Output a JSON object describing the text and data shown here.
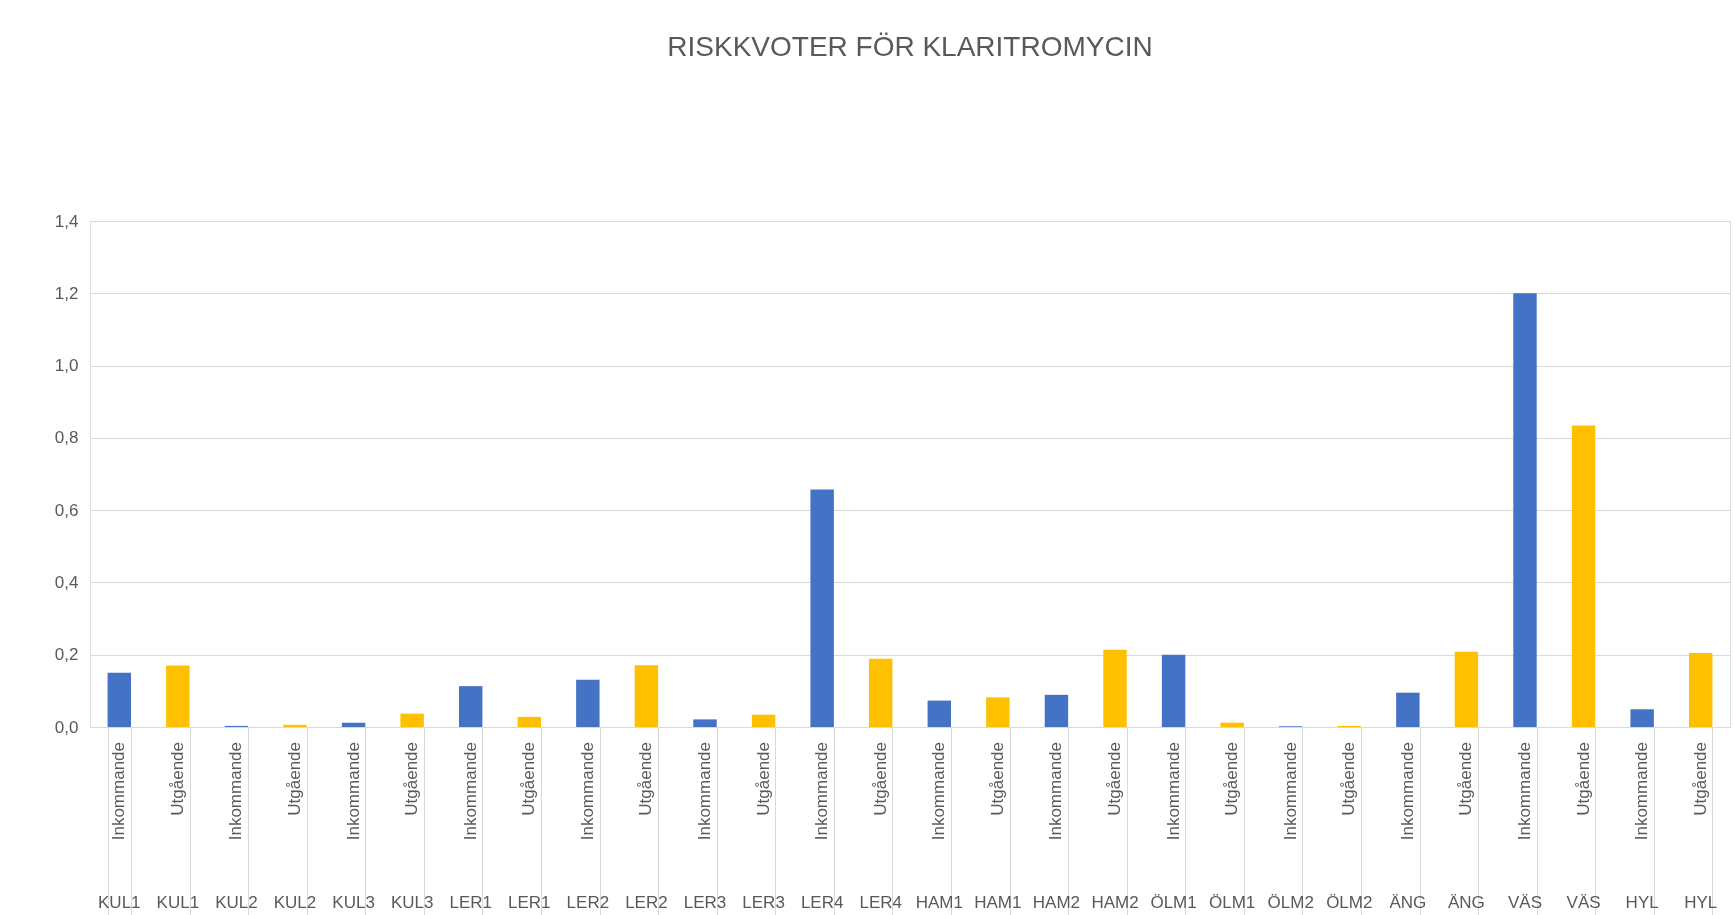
{
  "chart_data": {
    "type": "bar",
    "title": "RISKKVOTER FÖR KLARITROMYCIN",
    "categories": [
      "Inkommande KUL1",
      "Utgående KUL1",
      "Inkommande KUL2",
      "Utgående KUL2",
      "Inkommande KUL3",
      "Utgående KUL3",
      "Inkommande LER1",
      "Utgående LER1",
      "Inkommande LER2",
      "Utgående LER2",
      "Inkommande LER3",
      "Utgående LER3",
      "Inkommande LER4",
      "Utgående LER4",
      "Inkommande HAM1",
      "Utgående HAM1",
      "Inkommande HAM2",
      "Utgående HAM2",
      "Inkommande ÖLM1",
      "Utgående ÖLM1",
      "Inkommande ÖLM2",
      "Utgående ÖLM2",
      "Inkommande ÄNG",
      "Utgående ÄNG",
      "Inkommande VÄS",
      "Utgående VÄS",
      "Inkommande HYL",
      "Utgående HYL"
    ],
    "values": [
      0.15,
      0.17,
      0.003,
      0.006,
      0.012,
      0.037,
      0.113,
      0.028,
      0.131,
      0.171,
      0.021,
      0.034,
      0.657,
      0.189,
      0.073,
      0.082,
      0.089,
      0.214,
      0.2,
      0.012,
      0.002,
      0.003,
      0.095,
      0.208,
      1.2,
      0.834,
      0.049,
      0.205
    ],
    "colors": [
      "#4472c4",
      "#ffc000",
      "#4472c4",
      "#ffc000",
      "#4472c4",
      "#ffc000",
      "#4472c4",
      "#ffc000",
      "#4472c4",
      "#ffc000",
      "#4472c4",
      "#ffc000",
      "#4472c4",
      "#ffc000",
      "#4472c4",
      "#ffc000",
      "#4472c4",
      "#ffc000",
      "#4472c4",
      "#ffc000",
      "#4472c4",
      "#ffc000",
      "#4472c4",
      "#ffc000",
      "#4472c4",
      "#ffc000",
      "#4472c4",
      "#ffc000"
    ],
    "ylim": [
      0,
      1.4
    ],
    "yticks": [
      {
        "value": 0,
        "label": "0,0"
      },
      {
        "value": 0.2,
        "label": "0,2"
      },
      {
        "value": 0.4,
        "label": "0,4"
      },
      {
        "value": 0.6,
        "label": "0,6"
      },
      {
        "value": 0.8,
        "label": "0,8"
      },
      {
        "value": 1.0,
        "label": "1,0"
      },
      {
        "value": 1.2,
        "label": "1,2"
      },
      {
        "value": 1.4,
        "label": "1,4"
      }
    ],
    "grid": "y"
  }
}
